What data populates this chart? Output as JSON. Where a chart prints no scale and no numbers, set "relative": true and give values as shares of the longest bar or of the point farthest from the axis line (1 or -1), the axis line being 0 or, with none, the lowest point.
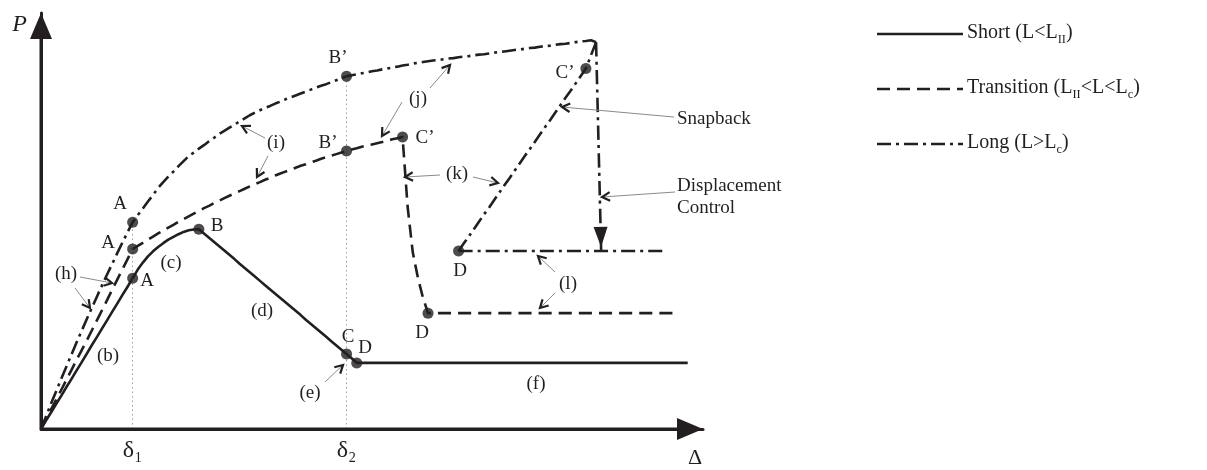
{
  "chart_data": {
    "type": "line",
    "relative": true,
    "xlabel": "Δ",
    "ylabel": "P",
    "legend": "right",
    "grid": "x",
    "categories": [
      null,
      null,
      null,
      null,
      null,
      null,
      null,
      null,
      null,
      null,
      null,
      null,
      null,
      null,
      null,
      null,
      null,
      null,
      "δ₁",
      null,
      null,
      null,
      null,
      null,
      null,
      null,
      null,
      null,
      null,
      null,
      null,
      null,
      null,
      null,
      null,
      null,
      null,
      null,
      null,
      null,
      null,
      null,
      null,
      null,
      null,
      null,
      null,
      null,
      null,
      null,
      null,
      null,
      null,
      null,
      null,
      null,
      null,
      null,
      null,
      null,
      "δ₂",
      null,
      null,
      null,
      null,
      null,
      null,
      null,
      null,
      null,
      null,
      null,
      null,
      null,
      null,
      null,
      null,
      null,
      null,
      null,
      null,
      null,
      null,
      null,
      null,
      null,
      null,
      null,
      null,
      null,
      null,
      null,
      null,
      null,
      null,
      null,
      null,
      null,
      null,
      null,
      null,
      null,
      null,
      null,
      null,
      null,
      null,
      null,
      null,
      null,
      null,
      null,
      null,
      null,
      null,
      null,
      null,
      null,
      null,
      null,
      null,
      null,
      null,
      null,
      null,
      null,
      null,
      null,
      null,
      null,
      null
    ],
    "series": [
      {
        "name": "Short (L<L$_{II}$)",
        "color": "#231f20",
        "line_style": "solid",
        "marker": "none",
        "values": [
          0,
          0.022,
          0.043,
          0.065,
          0.086,
          0.108,
          0.129,
          0.151,
          0.172,
          0.194,
          0.216,
          0.237,
          0.259,
          0.28,
          0.302,
          0.323,
          0.345,
          0.366,
          0.388,
          0.41,
          0.428,
          0.444,
          0.457,
          0.468,
          0.478,
          0.487,
          0.494,
          0.501,
          0.507,
          0.511,
          0.513,
          0.514,
          0.503,
          0.492,
          0.481,
          0.47,
          0.459,
          0.448,
          0.437,
          0.425,
          0.414,
          0.403,
          0.392,
          0.381,
          0.37,
          0.359,
          0.348,
          0.337,
          0.326,
          0.315,
          0.304,
          0.293,
          0.281,
          0.27,
          0.259,
          0.248,
          0.237,
          0.226,
          0.215,
          0.204,
          0.193,
          0.182,
          0.17,
          0.17,
          0.17,
          0.17,
          0.17,
          0.17,
          0.17,
          0.17,
          0.17,
          0.17,
          0.17,
          0.17,
          0.17,
          0.17,
          0.17,
          0.17,
          0.17,
          0.17,
          0.17,
          0.17,
          0.17,
          0.17,
          0.17,
          0.17,
          0.17,
          0.17,
          0.17,
          0.17,
          0.17,
          0.17,
          0.17,
          0.17,
          0.17,
          0.17,
          0.17,
          0.17,
          0.17,
          0.17,
          0.17,
          0.17,
          0.17,
          0.17,
          0.17,
          0.17,
          0.17,
          0.17,
          0.17,
          0.17,
          0.17,
          0.17,
          0.17,
          0.17,
          0.17,
          0.17,
          0.17,
          0.17,
          0.17,
          0.17,
          0.17,
          0.17,
          0.17,
          0.17,
          0.17,
          0.17,
          0.17,
          0.17,
          null,
          null,
          null
        ]
      },
      {
        "name": "Transition (L$_{II}$<L<L$_{c}$)",
        "color": "#231f20",
        "line_style": "dashed",
        "marker": "none",
        "values": [
          0,
          0.025,
          0.051,
          0.076,
          0.101,
          0.127,
          0.152,
          0.178,
          0.203,
          0.228,
          0.254,
          0.28,
          0.306,
          0.332,
          0.359,
          0.385,
          0.411,
          0.437,
          0.463,
          0.471,
          0.479,
          0.487,
          0.495,
          0.503,
          0.51,
          0.518,
          0.525,
          0.533,
          0.54,
          0.547,
          0.554,
          0.561,
          0.568,
          0.574,
          0.581,
          0.587,
          0.594,
          0.6,
          0.606,
          0.612,
          0.618,
          0.624,
          0.63,
          0.635,
          0.641,
          0.646,
          0.652,
          0.657,
          0.662,
          0.667,
          0.672,
          0.677,
          0.681,
          0.686,
          0.69,
          0.695,
          0.699,
          0.703,
          0.707,
          0.711,
          0.715,
          0.719,
          0.722,
          0.726,
          0.729,
          0.732,
          0.735,
          0.738,
          0.742,
          0.745,
          0.748,
          0.751,
          0.571,
          0.455,
          0.39,
          0.338,
          0.298,
          0.298,
          0.298,
          0.298,
          0.298,
          0.298,
          0.298,
          0.298,
          0.298,
          0.298,
          0.298,
          0.298,
          0.298,
          0.298,
          0.298,
          0.298,
          0.298,
          0.298,
          0.298,
          0.298,
          0.298,
          0.298,
          0.298,
          0.298,
          0.298,
          0.298,
          0.298,
          0.298,
          0.298,
          0.298,
          0.298,
          0.298,
          0.298,
          0.298,
          0.298,
          0.298,
          0.298,
          0.298,
          0.298,
          0.298,
          0.298,
          0.298,
          0.298,
          0.298,
          0.298,
          0.298,
          0.298,
          0.298,
          0.298,
          null,
          null,
          null,
          null,
          null,
          null
        ]
      },
      {
        "name": "Long (L>L$_{c}$)",
        "color": "#231f20",
        "line_style": "dashdot",
        "marker": "none",
        "values": [
          0,
          0.033,
          0.066,
          0.098,
          0.13,
          0.161,
          0.192,
          0.223,
          0.253,
          0.283,
          0.312,
          0.341,
          0.37,
          0.398,
          0.425,
          0.453,
          0.48,
          0.506,
          0.532,
          0.55,
          0.567,
          0.585,
          0.602,
          0.62,
          0.635,
          0.649,
          0.662,
          0.676,
          0.689,
          0.702,
          0.711,
          0.721,
          0.73,
          0.74,
          0.749,
          0.759,
          0.767,
          0.775,
          0.783,
          0.791,
          0.799,
          0.807,
          0.814,
          0.82,
          0.826,
          0.831,
          0.837,
          0.842,
          0.848,
          0.853,
          0.858,
          0.863,
          0.868,
          0.873,
          0.878,
          0.883,
          0.887,
          0.892,
          0.897,
          0.902,
          0.907,
          0.91,
          0.912,
          0.915,
          0.917,
          0.92,
          0.922,
          0.925,
          0.927,
          0.93,
          0.932,
          0.935,
          0.937,
          0.94,
          0.942,
          0.944,
          0.946,
          0.948,
          0.949,
          0.951,
          0.953,
          0.954,
          0.956,
          0.958,
          0.959,
          0.961,
          0.963,
          0.964,
          0.966,
          0.968,
          0.97,
          0.971,
          0.973,
          0.975,
          0.976,
          0.978,
          0.98,
          0.981,
          0.983,
          0.985,
          0.986,
          0.988,
          0.99,
          0.991,
          0.993,
          0.995,
          0.997,
          0.998,
          1.0,
          0.995,
          null,
          null,
          null,
          null,
          null,
          null,
          null,
          null,
          null,
          null,
          null,
          null,
          null,
          null,
          null,
          null,
          null,
          null,
          null,
          null,
          null
        ]
      },
      {
        "color": "#231f20",
        "line_style": "dashdot",
        "marker": "none",
        "values": [
          null,
          null,
          null,
          null,
          null,
          null,
          null,
          null,
          null,
          null,
          null,
          null,
          null,
          null,
          null,
          null,
          null,
          null,
          null,
          null,
          null,
          null,
          null,
          null,
          null,
          null,
          null,
          null,
          null,
          null,
          null,
          null,
          null,
          null,
          null,
          null,
          null,
          null,
          null,
          null,
          null,
          null,
          null,
          null,
          null,
          null,
          null,
          null,
          null,
          null,
          null,
          null,
          null,
          null,
          null,
          null,
          null,
          null,
          null,
          null,
          null,
          null,
          null,
          null,
          null,
          null,
          null,
          null,
          null,
          null,
          null,
          null,
          null,
          null,
          null,
          null,
          null,
          null,
          null,
          null,
          null,
          null,
          0.458,
          0.477,
          0.495,
          0.514,
          0.533,
          0.552,
          0.57,
          0.589,
          0.608,
          0.627,
          0.645,
          0.664,
          0.683,
          0.702,
          0.72,
          0.739,
          0.758,
          0.777,
          0.795,
          0.814,
          0.833,
          0.852,
          0.87,
          0.889,
          0.908,
          0.927,
          0.961,
          0.995,
          null,
          null,
          null,
          null,
          null,
          null,
          null,
          null,
          null,
          null,
          null,
          null,
          null,
          null,
          null,
          null,
          null,
          null,
          null,
          null,
          null
        ]
      },
      {
        "color": "#231f20",
        "line_style": "dashdot",
        "marker": "none",
        "values": [
          null,
          null,
          null,
          null,
          null,
          null,
          null,
          null,
          null,
          null,
          null,
          null,
          null,
          null,
          null,
          null,
          null,
          null,
          null,
          null,
          null,
          null,
          null,
          null,
          null,
          null,
          null,
          null,
          null,
          null,
          null,
          null,
          null,
          null,
          null,
          null,
          null,
          null,
          null,
          null,
          null,
          null,
          null,
          null,
          null,
          null,
          null,
          null,
          null,
          null,
          null,
          null,
          null,
          null,
          null,
          null,
          null,
          null,
          null,
          null,
          null,
          null,
          null,
          null,
          null,
          null,
          null,
          null,
          null,
          null,
          null,
          null,
          null,
          null,
          null,
          null,
          null,
          null,
          null,
          null,
          null,
          null,
          0.458,
          0.458,
          0.458,
          0.458,
          0.458,
          0.458,
          0.458,
          0.458,
          0.458,
          0.458,
          0.458,
          0.458,
          0.458,
          0.458,
          0.458,
          0.458,
          0.458,
          0.458,
          0.458,
          0.458,
          0.458,
          0.458,
          0.458,
          0.458,
          0.458,
          0.458,
          0.458,
          0.458,
          0.458,
          0.458,
          0.458,
          0.458,
          0.458,
          0.458,
          0.458,
          0.458,
          0.458,
          0.458,
          0.458,
          0.458,
          0.458,
          null,
          null,
          null,
          null,
          null,
          null,
          null,
          null
        ]
      },
      {
        "color": "#231f20",
        "line_style": "dashdot",
        "marker": "none",
        "values": [
          null,
          null,
          null,
          null,
          null,
          null,
          null,
          null,
          null,
          null,
          null,
          null,
          null,
          null,
          null,
          null,
          null,
          null,
          null,
          null,
          null,
          null,
          null,
          null,
          null,
          null,
          null,
          null,
          null,
          null,
          null,
          null,
          null,
          null,
          null,
          null,
          null,
          null,
          null,
          null,
          null,
          null,
          null,
          null,
          null,
          null,
          null,
          null,
          null,
          null,
          null,
          null,
          null,
          null,
          null,
          null,
          null,
          null,
          null,
          null,
          null,
          null,
          null,
          null,
          null,
          null,
          null,
          null,
          null,
          null,
          null,
          null,
          null,
          null,
          null,
          null,
          null,
          null,
          null,
          null,
          null,
          null,
          null,
          null,
          null,
          null,
          null,
          null,
          null,
          null,
          null,
          null,
          null,
          null,
          null,
          null,
          null,
          null,
          null,
          null,
          null,
          null,
          null,
          null,
          null,
          null,
          null,
          null,
          null,
          0.995,
          0.458,
          null,
          null,
          null,
          null,
          null,
          null,
          null,
          null,
          null,
          null,
          null,
          null,
          null,
          null,
          null,
          null,
          null,
          null,
          null,
          null
        ]
      },
      {
        "type": "scatter",
        "color": "#231f20",
        "marker": "circle",
        "values": [
          null,
          null,
          null,
          null,
          null,
          null,
          null,
          null,
          null,
          null,
          null,
          null,
          null,
          null,
          null,
          null,
          null,
          null,
          0.388,
          null,
          null,
          null,
          null,
          null,
          null,
          null,
          null,
          null,
          null,
          null,
          null,
          0.514,
          null,
          null,
          null,
          null,
          null,
          null,
          null,
          null,
          null,
          null,
          null,
          null,
          null,
          null,
          null,
          null,
          null,
          null,
          null,
          null,
          null,
          null,
          null,
          null,
          null,
          null,
          null,
          null,
          0.193,
          null,
          0.17,
          null,
          null,
          null,
          null,
          null,
          null,
          null,
          null,
          null,
          null,
          null,
          null,
          null,
          null,
          null,
          null,
          null,
          null,
          null,
          null,
          null,
          null,
          null,
          null,
          null,
          null,
          null,
          null,
          null,
          null,
          null,
          null,
          null,
          null,
          null,
          null,
          null,
          null,
          null,
          null,
          null,
          null,
          null,
          null,
          null,
          null,
          null,
          null,
          null,
          null,
          null,
          null,
          null,
          null,
          null,
          null,
          null,
          null,
          null,
          null,
          null,
          null,
          null,
          null,
          null,
          null,
          null,
          null
        ]
      },
      {
        "type": "scatter",
        "color": "#231f20",
        "marker": "circle",
        "values": [
          null,
          null,
          null,
          null,
          null,
          null,
          null,
          null,
          null,
          null,
          null,
          null,
          null,
          null,
          null,
          null,
          null,
          null,
          0.463,
          null,
          null,
          null,
          null,
          null,
          null,
          null,
          null,
          null,
          null,
          null,
          null,
          null,
          null,
          null,
          null,
          null,
          null,
          null,
          null,
          null,
          null,
          null,
          null,
          null,
          null,
          null,
          null,
          null,
          null,
          null,
          null,
          null,
          null,
          null,
          null,
          null,
          null,
          null,
          null,
          null,
          0.715,
          null,
          null,
          null,
          null,
          null,
          null,
          null,
          null,
          null,
          null,
          0.751,
          null,
          null,
          null,
          null,
          0.298,
          null,
          null,
          null,
          null,
          null,
          null,
          null,
          null,
          null,
          null,
          null,
          null,
          null,
          null,
          null,
          null,
          null,
          null,
          null,
          null,
          null,
          null,
          null,
          null,
          null,
          null,
          null,
          null,
          null,
          null,
          null,
          null,
          null,
          null,
          null,
          null,
          null,
          null,
          null,
          null,
          null,
          null,
          null,
          null,
          null,
          null,
          null,
          null,
          null,
          null,
          null,
          null,
          null,
          null
        ]
      },
      {
        "type": "scatter",
        "color": "#231f20",
        "marker": "circle",
        "values": [
          null,
          null,
          null,
          null,
          null,
          null,
          null,
          null,
          null,
          null,
          null,
          null,
          null,
          null,
          null,
          null,
          null,
          null,
          0.532,
          null,
          null,
          null,
          null,
          null,
          null,
          null,
          null,
          null,
          null,
          null,
          null,
          null,
          null,
          null,
          null,
          null,
          null,
          null,
          null,
          null,
          null,
          null,
          null,
          null,
          null,
          null,
          null,
          null,
          null,
          null,
          null,
          null,
          null,
          null,
          null,
          null,
          null,
          null,
          null,
          null,
          0.907,
          null,
          null,
          null,
          null,
          null,
          null,
          null,
          null,
          null,
          null,
          null,
          null,
          null,
          null,
          null,
          null,
          null,
          null,
          null,
          null,
          null,
          0.458,
          null,
          null,
          null,
          null,
          null,
          null,
          null,
          null,
          null,
          null,
          null,
          null,
          null,
          null,
          null,
          null,
          null,
          null,
          null,
          null,
          null,
          null,
          null,
          null,
          0.927,
          null,
          null,
          null,
          null,
          null,
          null,
          null,
          null,
          null,
          null,
          null,
          null,
          null,
          null,
          null,
          null,
          null,
          null,
          null,
          null,
          null,
          null,
          null
        ]
      }
    ],
    "annotations": [
      "A",
      "A",
      "A",
      "B",
      "C",
      "D",
      "D",
      "D",
      "B’",
      "B’",
      "C’",
      "C’",
      "(b)",
      "(c)",
      "(d)",
      "(e)",
      "(f)",
      "(h)",
      "(i)",
      "(j)",
      "(k)",
      "(l)",
      "Snapback",
      "Displacement Control"
    ]
  }
}
